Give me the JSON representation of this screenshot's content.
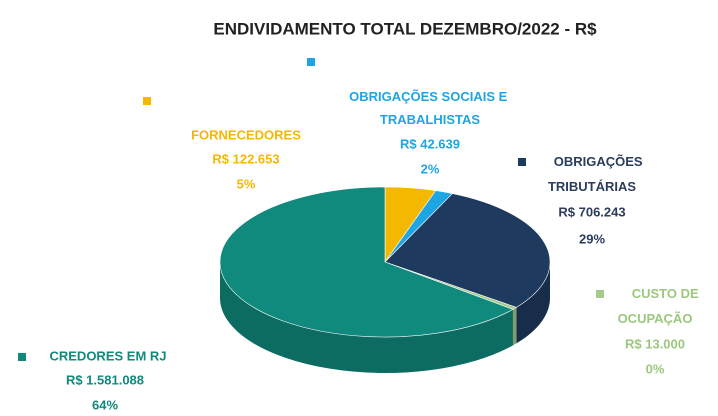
{
  "chart_data": {
    "type": "pie",
    "title": "ENDIVIDAMENTO TOTAL DEZEMBRO/2022 - R$",
    "categories": [
      "FORNECEDORES",
      "OBRIGAÇÕES SOCIAIS E TRABALHISTAS",
      "OBRIGAÇÕES TRIBUTÁRIAS",
      "CUSTO DE OCUPAÇÃO",
      "CREDORES EM RJ"
    ],
    "values": [
      122653,
      42639,
      706243,
      13000,
      1581088
    ],
    "value_labels": [
      "R$ 122.653",
      "R$ 42.639",
      "R$ 706.243",
      "R$ 13.000",
      "R$ 1.581.088"
    ],
    "percent_labels": [
      "5%",
      "2%",
      "29%",
      "0%",
      "64%"
    ],
    "colors": [
      "#f5b800",
      "#1ea5e3",
      "#1f3a5f",
      "#a6c98c",
      "#0f8a7c"
    ]
  }
}
